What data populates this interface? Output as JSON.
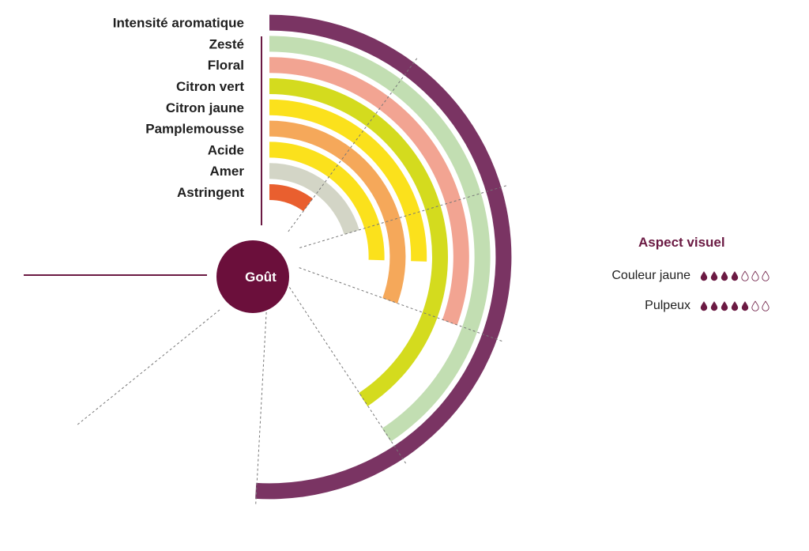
{
  "chart_data": {
    "type": "radial-bar",
    "center_label": "Goût",
    "scale_max": 10,
    "categories": [
      "Intensité aromatique",
      "Zesté",
      "Floral",
      "Citron vert",
      "Citron jaune",
      "Pamplemousse",
      "Acide",
      "Amer",
      "Astringent"
    ],
    "values": [
      10,
      8,
      6,
      8,
      5,
      6,
      5,
      4,
      2
    ],
    "colors": [
      "#7a3463",
      "#c2deb2",
      "#f2a492",
      "#d4db1e",
      "#fbe11c",
      "#f5a85a",
      "#fbe11c",
      "#d3d5c6",
      "#e95f2f"
    ]
  },
  "aspect": {
    "title": "Aspect visuel",
    "rows": [
      {
        "label": "Couleur jaune",
        "filled": 4,
        "total": 7
      },
      {
        "label": "Pulpeux",
        "filled": 5,
        "total": 7
      }
    ]
  },
  "colors": {
    "accent": "#6b1a43",
    "center": "#6b0f3b"
  }
}
